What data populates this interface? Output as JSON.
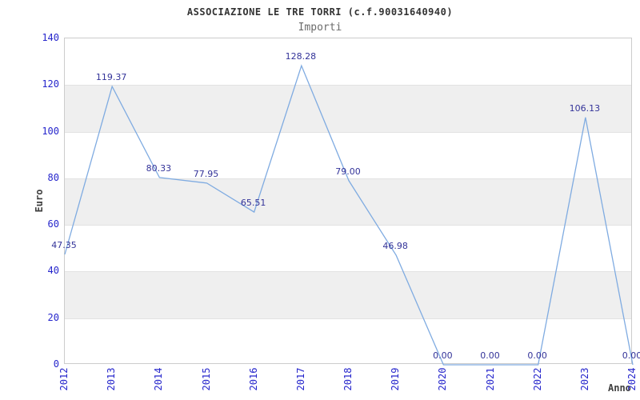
{
  "header": {
    "title": "ASSOCIAZIONE LE TRE TORRI (c.f.90031640940)",
    "subtitle": "Importi"
  },
  "chart_data": {
    "type": "line",
    "title": "ASSOCIAZIONE LE TRE TORRI (c.f.90031640940)",
    "subtitle": "Importi",
    "xlabel": "Anno",
    "ylabel": "Euro",
    "categories": [
      "2012",
      "2013",
      "2014",
      "2015",
      "2016",
      "2017",
      "2018",
      "2019",
      "2020",
      "2021",
      "2022",
      "2023",
      "2024"
    ],
    "values": [
      47.35,
      119.37,
      80.33,
      77.95,
      65.51,
      128.28,
      79.0,
      46.98,
      0.0,
      0.0,
      0.0,
      106.13,
      0.0
    ],
    "value_labels": [
      "47.35",
      "119.37",
      "80.33",
      "77.95",
      "65.51",
      "128.28",
      "79.00",
      "46.98",
      "0.00",
      "0.00",
      "0.00",
      "106.13",
      "0.00"
    ],
    "ylim": [
      0,
      140
    ],
    "ytick_step": 20,
    "grid": "horizontal",
    "band_fill": "alternating",
    "legend_position": "none",
    "colors": {
      "line": "#7fabe1",
      "tick_label": "#2626cc",
      "data_label": "#333399",
      "band": "#efefef",
      "gridline": "#e2e2e2",
      "frame": "#cccccc",
      "title": "#333333",
      "subtitle": "#6b6b6b",
      "axis_title": "#404040"
    }
  }
}
